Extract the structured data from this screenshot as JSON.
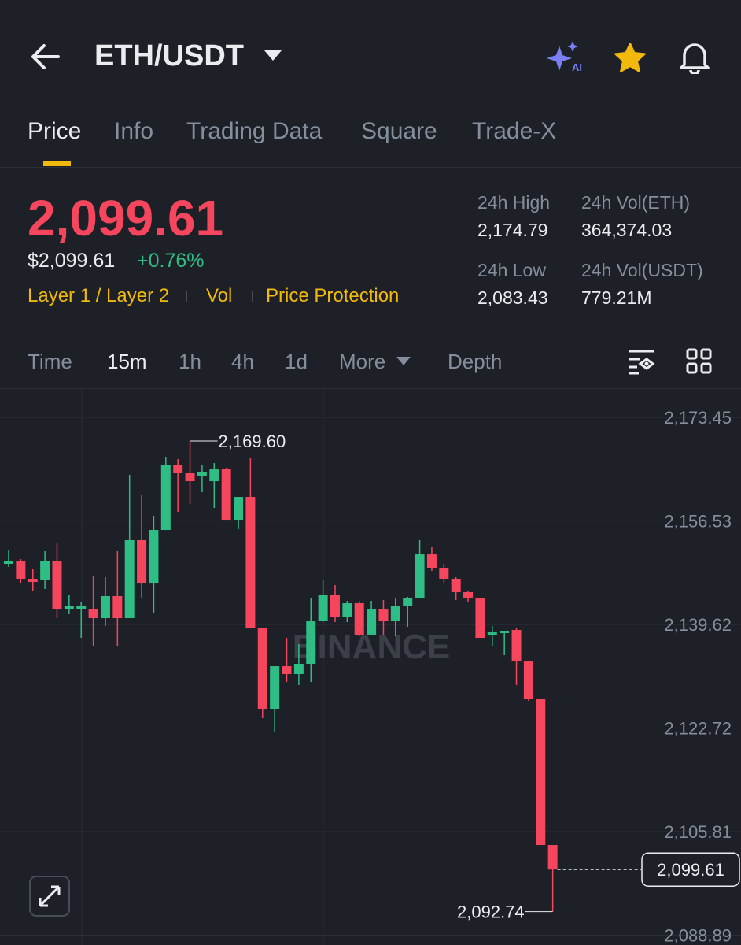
{
  "header": {
    "pair": "ETH/USDT",
    "ai_badge": "AI"
  },
  "tabs": [
    "Price",
    "Info",
    "Trading Data",
    "Square",
    "Trade-X"
  ],
  "price": {
    "last": "2,099.61",
    "usd": "$2,099.61",
    "change": "+0.76%"
  },
  "tags": [
    "Layer 1 / Layer 2",
    "Vol",
    "Price Protection"
  ],
  "stats": [
    {
      "label": "24h High",
      "value": "2,174.79"
    },
    {
      "label": "24h Vol(ETH)",
      "value": "364,374.03"
    },
    {
      "label": "24h Low",
      "value": "2,083.43"
    },
    {
      "label": "24h Vol(USDT)",
      "value": "779.21M"
    }
  ],
  "intervals": [
    "Time",
    "15m",
    "1h",
    "4h",
    "1d",
    "More",
    "Depth"
  ],
  "watermark": "BINANCE",
  "chart_data": {
    "type": "candlestick",
    "up_color": "#2ebd85",
    "down_color": "#f6465d",
    "candles": {
      "open": [
        2149.53,
        2149.92,
        2147.09,
        2146.83,
        2149.92,
        2142.2,
        2142.2,
        2142.2,
        2140.66,
        2144.26,
        2140.66,
        2153.39,
        2146.44,
        2155.06,
        2165.61,
        2164.32,
        2163.93,
        2163.03,
        2164.96,
        2156.73,
        2160.46,
        2138.99,
        2125.87,
        2132.81,
        2131.53,
        2133.2,
        2140.27,
        2144.51,
        2140.91,
        2143.1,
        2137.96,
        2142.2,
        2140.14,
        2142.59,
        2144.0,
        2151.07,
        2148.89,
        2147.09,
        2144.9,
        2143.87,
        2137.96,
        2138.21,
        2138.73,
        2133.58,
        2127.54,
        2103.62
      ],
      "high": [
        2151.85,
        2150.3,
        2148.76,
        2151.59,
        2152.87,
        2144.51,
        2143.23,
        2147.47,
        2147.34,
        2151.59,
        2164.06,
        2160.85,
        2157.37,
        2167.02,
        2166.63,
        2169.6,
        2165.73,
        2165.99,
        2165.22,
        2160.46,
        2166.76,
        2138.99,
        2132.81,
        2137.44,
        2136.41,
        2143.87,
        2146.83,
        2146.06,
        2143.49,
        2143.49,
        2143.49,
        2143.61,
        2143.87,
        2144.13,
        2153.39,
        2152.23,
        2149.53,
        2147.34,
        2145.16,
        2143.87,
        2139.37,
        2138.6,
        2139.11,
        2133.58,
        2127.54,
        2103.62
      ],
      "low": [
        2149.02,
        2146.44,
        2145.16,
        2145.42,
        2140.66,
        2141.3,
        2137.44,
        2136.16,
        2139.37,
        2136.16,
        2140.66,
        2143.87,
        2141.56,
        2155.06,
        2158.02,
        2159.3,
        2161.23,
        2158.66,
        2156.73,
        2155.19,
        2138.99,
        2124.32,
        2122.01,
        2130.24,
        2129.73,
        2130.24,
        2140.01,
        2140.01,
        2140.01,
        2137.7,
        2137.96,
        2137.96,
        2137.7,
        2139.24,
        2144.0,
        2148.37,
        2146.44,
        2143.61,
        2143.23,
        2137.44,
        2136.16,
        2134.61,
        2129.73,
        2127.15,
        2103.62,
        2092.74
      ],
      "close": [
        2150.04,
        2147.09,
        2146.57,
        2149.92,
        2142.2,
        2142.59,
        2142.59,
        2140.66,
        2144.26,
        2140.66,
        2153.39,
        2146.44,
        2155.06,
        2165.61,
        2164.32,
        2163.03,
        2164.45,
        2164.96,
        2156.73,
        2160.46,
        2138.99,
        2125.87,
        2132.81,
        2131.53,
        2133.2,
        2140.27,
        2144.51,
        2140.91,
        2143.1,
        2137.96,
        2142.2,
        2140.14,
        2142.59,
        2144.0,
        2151.07,
        2148.89,
        2147.09,
        2144.9,
        2143.87,
        2137.44,
        2138.34,
        2138.6,
        2133.58,
        2127.54,
        2103.62,
        2099.61
      ]
    },
    "ylim": [
      2087.29,
      2178.21
    ],
    "yticks": [
      {
        "value": 2173.45,
        "label": "2,173.45"
      },
      {
        "value": 2156.53,
        "label": "2,156.53"
      },
      {
        "value": 2139.62,
        "label": "2,139.62"
      },
      {
        "value": 2122.72,
        "label": "2,122.72"
      },
      {
        "value": 2105.81,
        "label": "2,105.81"
      },
      {
        "value": 2088.89,
        "label": "2,088.89"
      }
    ],
    "grid": true,
    "last_price": {
      "value": 2099.61,
      "label": "2,099.61"
    },
    "high_marker": {
      "value": 2169.6,
      "label": "2,169.60"
    },
    "low_marker": {
      "value": 2092.74,
      "label": "2,092.74"
    }
  }
}
